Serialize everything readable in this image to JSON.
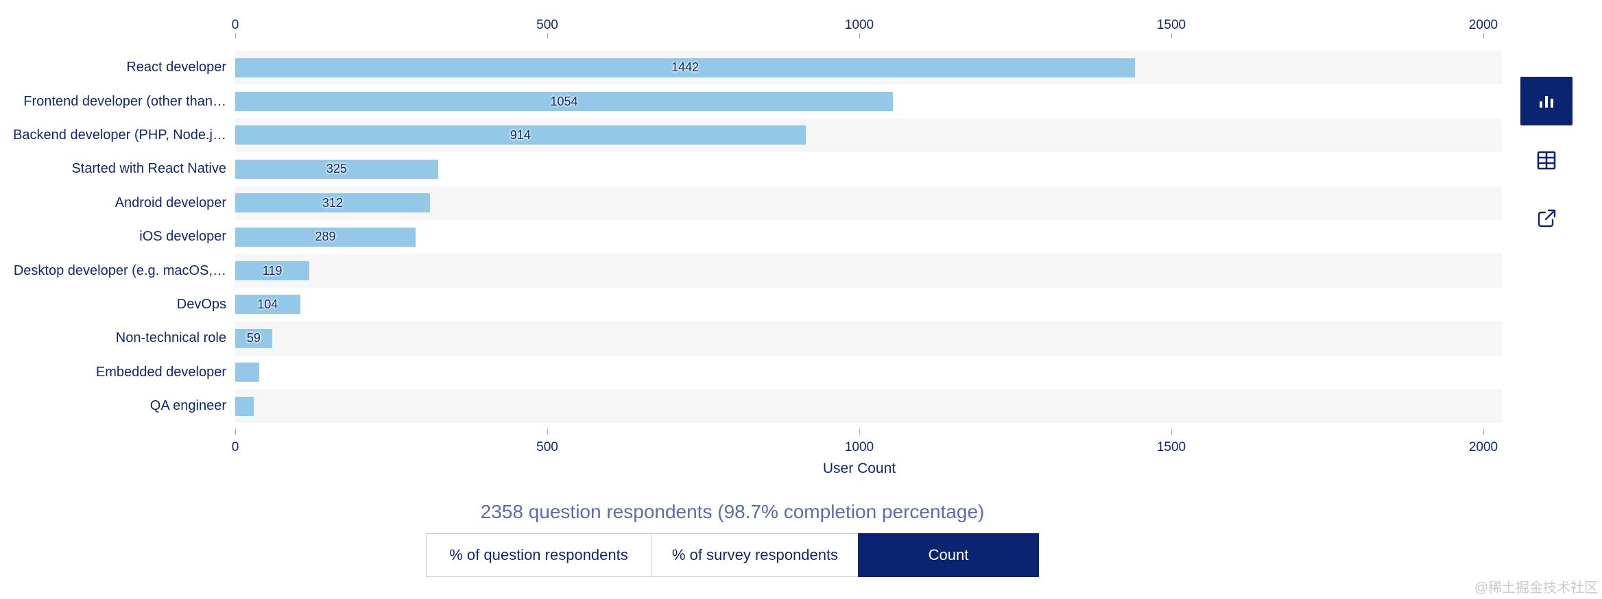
{
  "chart_data": {
    "type": "bar",
    "orientation": "horizontal",
    "title": "",
    "xlabel": "User Count",
    "categories": [
      "React developer",
      "Frontend developer (other than…",
      "Backend developer (PHP, Node.j…",
      "Started with React Native",
      "Android developer",
      "iOS developer",
      "Desktop developer (e.g. macOS,…",
      "DevOps",
      "Non-technical role",
      "Embedded developer",
      "QA engineer"
    ],
    "values": [
      1442,
      1054,
      914,
      325,
      312,
      289,
      119,
      104,
      59,
      39,
      30
    ],
    "bar_labels": [
      "1442",
      "1054",
      "914",
      "325",
      "312",
      "289",
      "119",
      "104",
      "59",
      "",
      ""
    ],
    "xlim": [
      0,
      2000
    ],
    "x_ticks": [
      0,
      500,
      1000,
      1500,
      2000
    ],
    "axes": "ticks on top and bottom, no gridlines",
    "row_striping": "alternate rows shaded starting with first"
  },
  "footer": {
    "subtitle": "2358 question respondents (98.7% completion percentage)",
    "buttons": [
      {
        "label": "% of question respondents",
        "selected": false
      },
      {
        "label": "% of survey respondents",
        "selected": false
      },
      {
        "label": "Count",
        "selected": true
      }
    ]
  },
  "toolbar": {
    "chart_view": "bar-chart-icon",
    "table_view": "table-icon",
    "share": "external-link-icon"
  },
  "watermark": "@稀土掘金技术社区",
  "colors": {
    "bar": "#93c8e8",
    "row_stripe": "#f6f6f6",
    "navy_text": "#10296b",
    "selected_button_bg": "#0a2472",
    "subtitle_text": "#5b6cae",
    "button_border": "#cfcfcf",
    "watermark_text": "#cbcbcb"
  }
}
